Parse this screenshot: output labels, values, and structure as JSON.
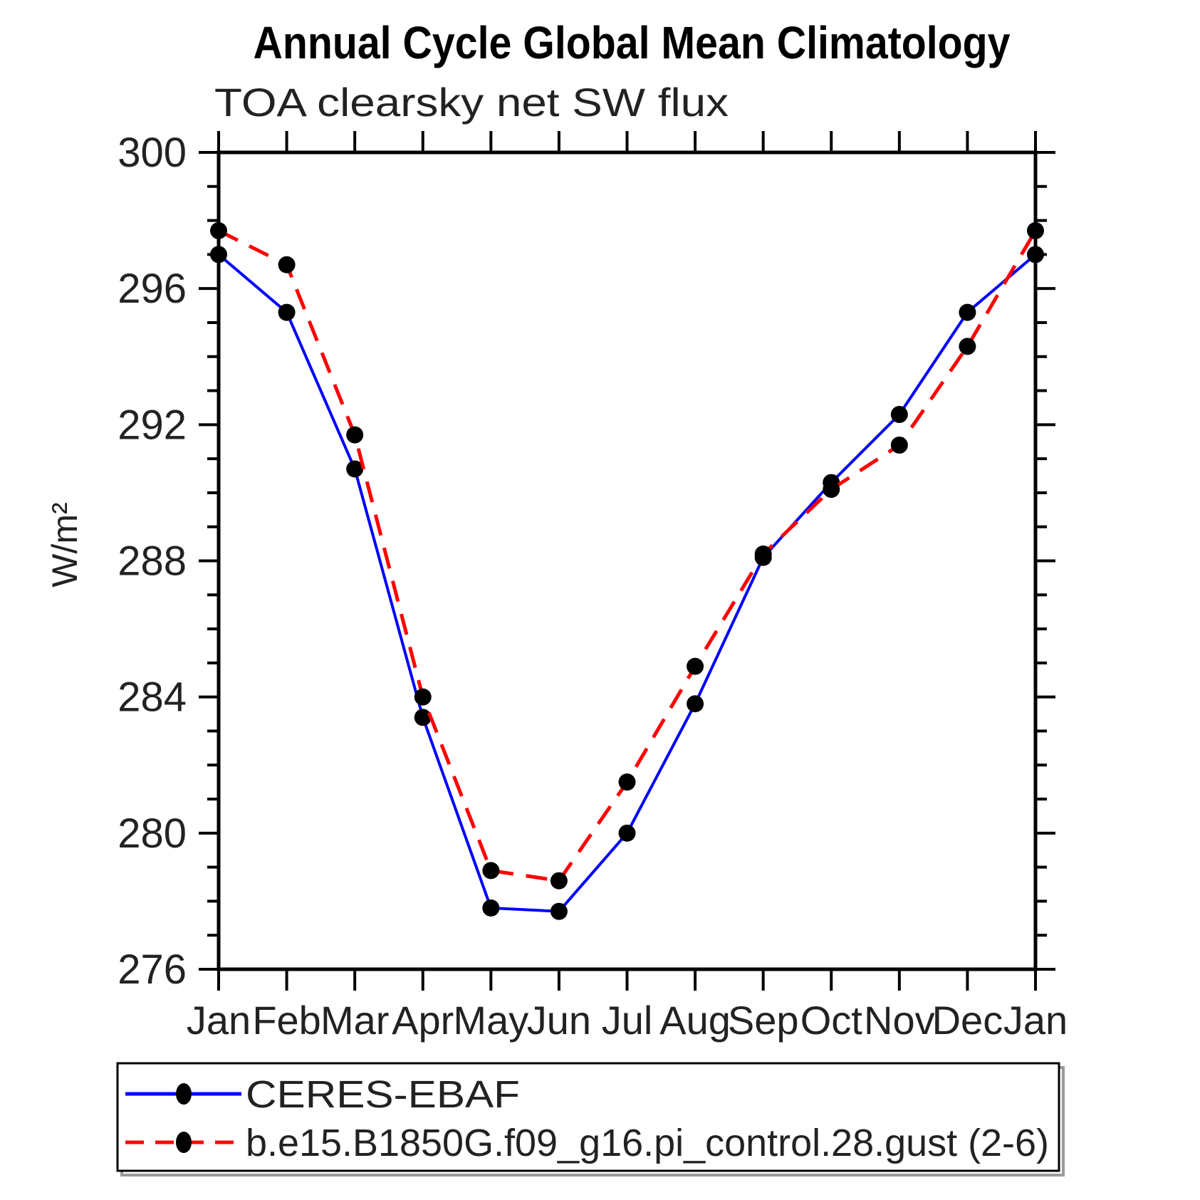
{
  "page": {
    "title": "Annual Cycle Global Mean Climatology",
    "subtitle": "TOA clearsky net SW flux"
  },
  "axes": {
    "ylabel": "W/m²",
    "y_ticks": [
      {
        "label": "300",
        "value": 300
      },
      {
        "label": "296",
        "value": 296
      },
      {
        "label": "292",
        "value": 292
      },
      {
        "label": "288",
        "value": 288
      },
      {
        "label": "284",
        "value": 284
      },
      {
        "label": "280",
        "value": 280
      },
      {
        "label": "276",
        "value": 276
      }
    ],
    "x_labels": [
      "Jan",
      "Feb",
      "Mar",
      "Apr",
      "May",
      "Jun",
      "Jul",
      "Aug",
      "Sep",
      "Oct",
      "Nov",
      "Dec",
      "Jan"
    ]
  },
  "legend": {
    "entries": [
      {
        "label": "CERES-EBAF",
        "color": "#0000ff",
        "style": "solid"
      },
      {
        "label": "b.e15.B1850G.f09_g16.pi_control.28.gust (2-6)",
        "color": "#ff0000",
        "style": "dashed"
      }
    ]
  },
  "chart_data": {
    "type": "line",
    "title": "Annual Cycle Global Mean Climatology",
    "subtitle": "TOA clearsky net SW flux",
    "xlabel": "",
    "ylabel": "W/m²",
    "ylim": [
      276,
      300
    ],
    "ytick_major": 4,
    "ytick_minor": 1,
    "grid": false,
    "legend_position": "bottom",
    "marker": "filled-circle",
    "marker_color": "#000000",
    "categories": [
      "Jan",
      "Feb",
      "Mar",
      "Apr",
      "May",
      "Jun",
      "Jul",
      "Aug",
      "Sep",
      "Oct",
      "Nov",
      "Dec",
      "Jan"
    ],
    "series": [
      {
        "id": "ceres-ebaf",
        "name": "CERES-EBAF",
        "color": "#0000ff",
        "line_style": "solid",
        "values": [
          297.0,
          295.3,
          290.7,
          283.4,
          277.8,
          277.7,
          280.0,
          283.8,
          288.1,
          290.3,
          292.3,
          295.3,
          297.0
        ]
      },
      {
        "id": "b-e15-b1850g-pi-control-28-gust",
        "name": "b.e15.B1850G.f09_g16.pi_control.28.gust (2-6)",
        "color": "#ff0000",
        "line_style": "dashed",
        "values": [
          297.7,
          296.7,
          291.7,
          284.0,
          278.9,
          278.6,
          281.5,
          284.9,
          288.2,
          290.1,
          291.4,
          294.3,
          297.7
        ]
      }
    ]
  }
}
